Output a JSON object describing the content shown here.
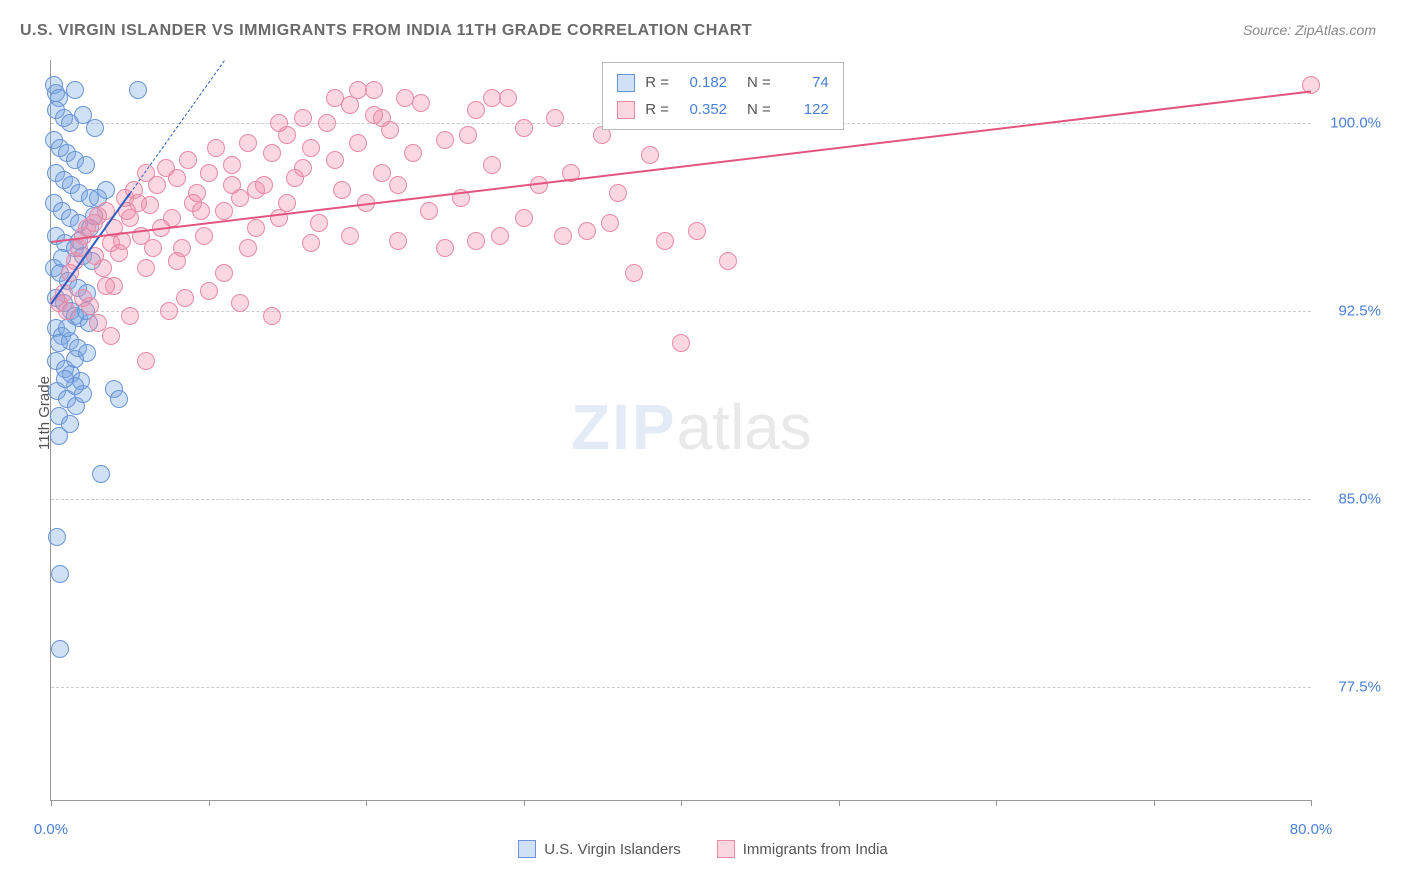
{
  "title": "U.S. VIRGIN ISLANDER VS IMMIGRANTS FROM INDIA 11TH GRADE CORRELATION CHART",
  "source": "Source: ZipAtlas.com",
  "y_axis_title": "11th Grade",
  "watermark_zip": "ZIP",
  "watermark_atlas": "atlas",
  "chart": {
    "type": "scatter",
    "x_range": [
      0,
      80
    ],
    "y_range": [
      73,
      102.5
    ],
    "y_ticks": [
      77.5,
      85.0,
      92.5,
      100.0
    ],
    "y_tick_labels": [
      "77.5%",
      "85.0%",
      "92.5%",
      "100.0%"
    ],
    "x_ticks": [
      0,
      10,
      20,
      30,
      40,
      50,
      60,
      70,
      80
    ],
    "x_tick_labels": {
      "0": "0.0%",
      "80": "80.0%"
    },
    "background_color": "#ffffff",
    "grid_color": "#cccccc",
    "axis_color": "#999999",
    "point_radius": 9,
    "series": [
      {
        "name": "U.S. Virgin Islanders",
        "color_fill": "rgba(120,165,225,0.35)",
        "color_stroke": "#6a94d6",
        "trend_color": "#2b5cc4",
        "R": 0.182,
        "N": 74,
        "trend": {
          "x1": 0,
          "y1": 92.8,
          "x2": 5,
          "y2": 97.2
        },
        "dashed": {
          "x1": 5,
          "y1": 97.2,
          "x2": 11,
          "y2": 102.5
        },
        "points": [
          [
            0.2,
            101.5
          ],
          [
            0.3,
            101.2
          ],
          [
            0.5,
            101.0
          ],
          [
            1.5,
            101.3
          ],
          [
            5.5,
            101.3
          ],
          [
            0.3,
            100.5
          ],
          [
            0.8,
            100.2
          ],
          [
            1.2,
            100.0
          ],
          [
            2.0,
            100.3
          ],
          [
            2.8,
            99.8
          ],
          [
            0.2,
            99.3
          ],
          [
            0.6,
            99.0
          ],
          [
            1.0,
            98.8
          ],
          [
            1.5,
            98.5
          ],
          [
            2.2,
            98.3
          ],
          [
            0.3,
            98.0
          ],
          [
            0.8,
            97.7
          ],
          [
            1.3,
            97.5
          ],
          [
            1.8,
            97.2
          ],
          [
            2.5,
            97.0
          ],
          [
            0.2,
            96.8
          ],
          [
            0.7,
            96.5
          ],
          [
            1.2,
            96.2
          ],
          [
            1.8,
            96.0
          ],
          [
            2.5,
            95.8
          ],
          [
            0.3,
            95.5
          ],
          [
            0.9,
            95.2
          ],
          [
            1.5,
            95.0
          ],
          [
            2.0,
            94.7
          ],
          [
            2.6,
            94.5
          ],
          [
            0.2,
            94.2
          ],
          [
            0.6,
            94.0
          ],
          [
            1.1,
            93.7
          ],
          [
            1.7,
            93.4
          ],
          [
            2.3,
            93.2
          ],
          [
            0.3,
            93.0
          ],
          [
            0.8,
            92.8
          ],
          [
            1.3,
            92.5
          ],
          [
            1.8,
            92.2
          ],
          [
            2.4,
            92.0
          ],
          [
            0.3,
            91.8
          ],
          [
            0.7,
            91.5
          ],
          [
            1.2,
            91.3
          ],
          [
            1.7,
            91.0
          ],
          [
            2.3,
            90.8
          ],
          [
            0.3,
            90.5
          ],
          [
            0.9,
            90.2
          ],
          [
            1.3,
            90.0
          ],
          [
            1.9,
            89.7
          ],
          [
            0.4,
            89.3
          ],
          [
            1.0,
            89.0
          ],
          [
            1.6,
            88.7
          ],
          [
            0.5,
            88.3
          ],
          [
            1.2,
            88.0
          ],
          [
            2.0,
            89.2
          ],
          [
            1.5,
            89.5
          ],
          [
            4.0,
            89.4
          ],
          [
            4.3,
            89.0
          ],
          [
            0.5,
            87.5
          ],
          [
            3.2,
            86.0
          ],
          [
            0.4,
            83.5
          ],
          [
            0.6,
            82.0
          ],
          [
            0.6,
            79.0
          ],
          [
            1.5,
            92.3
          ],
          [
            2.2,
            92.5
          ],
          [
            0.7,
            94.6
          ],
          [
            1.8,
            95.3
          ],
          [
            2.7,
            96.3
          ],
          [
            3.0,
            97.0
          ],
          [
            3.5,
            97.3
          ],
          [
            0.5,
            91.2
          ],
          [
            1.0,
            91.8
          ],
          [
            1.5,
            90.6
          ],
          [
            0.9,
            89.8
          ]
        ]
      },
      {
        "name": "Immigrants from India",
        "color_fill": "rgba(240,140,170,0.35)",
        "color_stroke": "#e88aa5",
        "trend_color": "#e3557e",
        "R": 0.352,
        "N": 122,
        "trend": {
          "x1": 0,
          "y1": 95.3,
          "x2": 80,
          "y2": 101.3
        },
        "points": [
          [
            0.5,
            92.8
          ],
          [
            0.8,
            93.2
          ],
          [
            1.2,
            94.0
          ],
          [
            1.5,
            94.5
          ],
          [
            1.8,
            95.0
          ],
          [
            2.0,
            95.5
          ],
          [
            2.3,
            95.8
          ],
          [
            2.7,
            96.0
          ],
          [
            3.0,
            96.3
          ],
          [
            3.5,
            96.5
          ],
          [
            3.8,
            95.2
          ],
          [
            4.0,
            95.8
          ],
          [
            4.3,
            94.8
          ],
          [
            4.7,
            97.0
          ],
          [
            5.0,
            96.2
          ],
          [
            5.3,
            97.3
          ],
          [
            5.7,
            95.5
          ],
          [
            6.0,
            98.0
          ],
          [
            6.3,
            96.7
          ],
          [
            6.7,
            97.5
          ],
          [
            7.0,
            95.8
          ],
          [
            7.3,
            98.2
          ],
          [
            7.7,
            96.2
          ],
          [
            8.0,
            97.8
          ],
          [
            8.3,
            95.0
          ],
          [
            8.7,
            98.5
          ],
          [
            9.0,
            96.8
          ],
          [
            9.3,
            97.2
          ],
          [
            9.7,
            95.5
          ],
          [
            10.0,
            98.0
          ],
          [
            10.5,
            99.0
          ],
          [
            11.0,
            96.5
          ],
          [
            11.5,
            98.3
          ],
          [
            12.0,
            97.0
          ],
          [
            12.5,
            99.2
          ],
          [
            13.0,
            95.8
          ],
          [
            13.5,
            97.5
          ],
          [
            14.0,
            98.8
          ],
          [
            14.5,
            96.2
          ],
          [
            15.0,
            99.5
          ],
          [
            15.5,
            97.8
          ],
          [
            16.0,
            98.2
          ],
          [
            16.5,
            99.0
          ],
          [
            17.0,
            96.0
          ],
          [
            17.5,
            100.0
          ],
          [
            18.0,
            98.5
          ],
          [
            18.5,
            97.3
          ],
          [
            19.0,
            100.7
          ],
          [
            19.5,
            99.2
          ],
          [
            20.0,
            96.8
          ],
          [
            20.5,
            100.3
          ],
          [
            21.0,
            98.0
          ],
          [
            21.5,
            99.7
          ],
          [
            22.0,
            97.5
          ],
          [
            22.5,
            101.0
          ],
          [
            23.0,
            98.8
          ],
          [
            24.0,
            96.5
          ],
          [
            25.0,
            99.3
          ],
          [
            26.0,
            97.0
          ],
          [
            27.0,
            100.5
          ],
          [
            28.0,
            98.3
          ],
          [
            28.5,
            95.5
          ],
          [
            29.0,
            101.0
          ],
          [
            30.0,
            99.8
          ],
          [
            31.0,
            97.5
          ],
          [
            32.0,
            100.2
          ],
          [
            33.0,
            98.0
          ],
          [
            34.0,
            95.7
          ],
          [
            35.0,
            99.5
          ],
          [
            36.0,
            97.2
          ],
          [
            37.0,
            94.0
          ],
          [
            38.0,
            98.7
          ],
          [
            39.0,
            95.3
          ],
          [
            40.0,
            91.2
          ],
          [
            2.5,
            92.7
          ],
          [
            3.0,
            92.0
          ],
          [
            3.8,
            91.5
          ],
          [
            7.5,
            92.5
          ],
          [
            8.5,
            93.0
          ],
          [
            4.0,
            93.5
          ],
          [
            6.0,
            94.2
          ],
          [
            8.0,
            94.5
          ],
          [
            5.0,
            92.3
          ],
          [
            10.0,
            93.3
          ],
          [
            12.0,
            92.8
          ],
          [
            11.0,
            94.0
          ],
          [
            14.0,
            92.3
          ],
          [
            6.0,
            90.5
          ],
          [
            12.5,
            95.0
          ],
          [
            15.0,
            96.8
          ],
          [
            16.5,
            95.2
          ],
          [
            19.0,
            95.5
          ],
          [
            22.0,
            95.3
          ],
          [
            25.0,
            95.0
          ],
          [
            27.0,
            95.3
          ],
          [
            30.0,
            96.2
          ],
          [
            32.5,
            95.5
          ],
          [
            35.5,
            96.0
          ],
          [
            41.0,
            95.7
          ],
          [
            43.0,
            94.5
          ],
          [
            28.0,
            101.0
          ],
          [
            23.5,
            100.8
          ],
          [
            21.0,
            100.2
          ],
          [
            19.5,
            101.3
          ],
          [
            26.5,
            99.5
          ],
          [
            20.5,
            101.3
          ],
          [
            18.0,
            101.0
          ],
          [
            16.0,
            100.2
          ],
          [
            14.5,
            100.0
          ],
          [
            80.0,
            101.5
          ],
          [
            1.0,
            92.5
          ],
          [
            2.0,
            93.0
          ],
          [
            3.3,
            94.2
          ],
          [
            4.5,
            95.3
          ],
          [
            5.5,
            96.8
          ],
          [
            3.5,
            93.5
          ],
          [
            2.8,
            94.7
          ],
          [
            4.8,
            96.5
          ],
          [
            6.5,
            95.0
          ],
          [
            9.5,
            96.5
          ],
          [
            11.5,
            97.5
          ],
          [
            13.0,
            97.3
          ]
        ]
      }
    ]
  },
  "legend_stats": {
    "rows": [
      {
        "swatch_fill": "rgba(120,165,225,0.35)",
        "swatch_stroke": "#6a94d6",
        "r_label": "R =",
        "r_val": "0.182",
        "n_label": "N =",
        "n_val": "74"
      },
      {
        "swatch_fill": "rgba(240,140,170,0.35)",
        "swatch_stroke": "#e88aa5",
        "r_label": "R =",
        "r_val": "0.352",
        "n_label": "N =",
        "n_val": "122"
      }
    ]
  },
  "bottom_legend": [
    {
      "fill": "rgba(120,165,225,0.35)",
      "stroke": "#6a94d6",
      "label": "U.S. Virgin Islanders"
    },
    {
      "fill": "rgba(240,140,170,0.35)",
      "stroke": "#e88aa5",
      "label": "Immigrants from India"
    }
  ]
}
